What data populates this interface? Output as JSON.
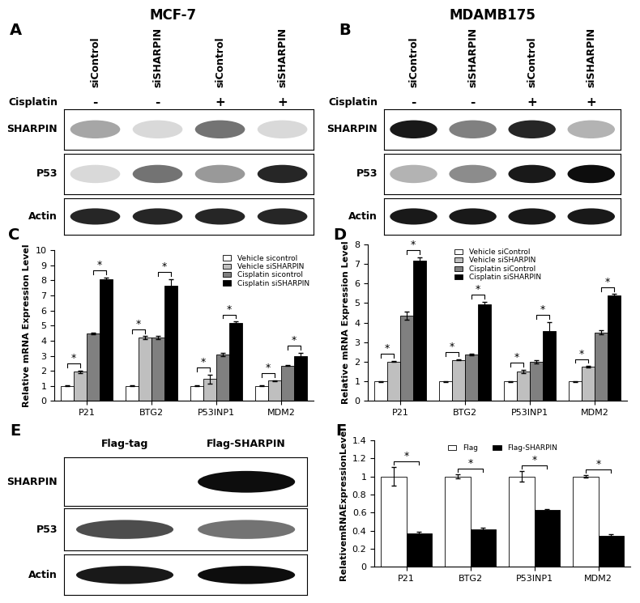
{
  "column_titles": [
    "MCF-7",
    "MDAMB175"
  ],
  "blots": [
    {
      "panel": "A",
      "lanes": [
        "siControl",
        "siSHARPIN",
        "siControl",
        "siSHARPIN"
      ],
      "treatment": {
        "name": "Cisplatin",
        "marks": [
          "-",
          "-",
          "+",
          "+"
        ]
      },
      "rows": [
        {
          "name": "SHARPIN",
          "band_intensity": [
            0.35,
            0.15,
            0.55,
            0.15
          ]
        },
        {
          "name": "P53",
          "band_intensity": [
            0.15,
            0.55,
            0.4,
            0.85
          ]
        },
        {
          "name": "Actin",
          "band_intensity": [
            0.85,
            0.85,
            0.85,
            0.85
          ]
        }
      ]
    },
    {
      "panel": "B",
      "lanes": [
        "siControl",
        "siSHARPIN",
        "siControl",
        "siSHARPIN"
      ],
      "treatment": {
        "name": "Cisplatin",
        "marks": [
          "-",
          "-",
          "+",
          "+"
        ]
      },
      "rows": [
        {
          "name": "SHARPIN",
          "band_intensity": [
            0.9,
            0.5,
            0.85,
            0.3
          ]
        },
        {
          "name": "P53",
          "band_intensity": [
            0.3,
            0.45,
            0.9,
            0.95
          ]
        },
        {
          "name": "Actin",
          "band_intensity": [
            0.9,
            0.9,
            0.9,
            0.9
          ]
        }
      ]
    },
    {
      "panel": "E",
      "lanes": [
        "Flag-tag",
        "Flag-SHARPIN"
      ],
      "rows": [
        {
          "name": "SHARPIN",
          "band_intensity": [
            0.0,
            0.95
          ]
        },
        {
          "name": "P53",
          "band_intensity": [
            0.7,
            0.55
          ]
        },
        {
          "name": "Actin",
          "band_intensity": [
            0.9,
            0.95
          ]
        }
      ]
    }
  ],
  "chart_data": [
    {
      "panel": "C",
      "type": "bar",
      "y_label": "Relative mRNA Expression Level",
      "categories": [
        "P21",
        "BTG2",
        "P53INP1",
        "MDM2"
      ],
      "series": [
        {
          "name": "Vehicle sicontrol",
          "color": "#ffffff",
          "values": [
            1,
            1,
            1,
            1
          ],
          "error": [
            0.02,
            0.02,
            0.02,
            0.02
          ]
        },
        {
          "name": "Vehicle siSHARPIN",
          "color": "#bfbfbf",
          "values": [
            1.95,
            4.2,
            1.45,
            1.35
          ],
          "error": [
            0.08,
            0.1,
            0.3,
            0.03
          ]
        },
        {
          "name": "Cisplatin sicontrol",
          "color": "#808080",
          "values": [
            4.5,
            4.2,
            3.1,
            2.35
          ],
          "error": [
            0.05,
            0.12,
            0.1,
            0.03
          ]
        },
        {
          "name": "Cisplatin siSHARPIN",
          "color": "#000000",
          "values": [
            8.1,
            7.65,
            5.2,
            3.0
          ],
          "error": [
            0.1,
            0.45,
            0.08,
            0.2
          ]
        }
      ],
      "ylim": [
        0,
        10
      ],
      "yticks": [
        0,
        1,
        2,
        3,
        4,
        5,
        6,
        7,
        8,
        9,
        10
      ],
      "legend": "upper right",
      "annotations": [
        {
          "category": "P21",
          "between": [
            "Vehicle sicontrol",
            "Vehicle siSHARPIN"
          ],
          "text": "*"
        },
        {
          "category": "P21",
          "between": [
            "Cisplatin sicontrol",
            "Cisplatin siSHARPIN"
          ],
          "text": "*"
        },
        {
          "category": "BTG2",
          "between": [
            "Vehicle sicontrol",
            "Vehicle siSHARPIN"
          ],
          "text": "*"
        },
        {
          "category": "BTG2",
          "between": [
            "Cisplatin sicontrol",
            "Cisplatin siSHARPIN"
          ],
          "text": "*"
        },
        {
          "category": "P53INP1",
          "between": [
            "Vehicle sicontrol",
            "Vehicle siSHARPIN"
          ],
          "text": "*"
        },
        {
          "category": "P53INP1",
          "between": [
            "Cisplatin sicontrol",
            "Cisplatin siSHARPIN"
          ],
          "text": "*"
        },
        {
          "category": "MDM2",
          "between": [
            "Vehicle sicontrol",
            "Vehicle siSHARPIN"
          ],
          "text": "*"
        },
        {
          "category": "MDM2",
          "between": [
            "Cisplatin sicontrol",
            "Cisplatin siSHARPIN"
          ],
          "text": "*"
        }
      ]
    },
    {
      "panel": "D",
      "type": "bar",
      "y_label": "Relative mRNA Expression Level",
      "categories": [
        "P21",
        "BTG2",
        "P53INP1",
        "MDM2"
      ],
      "series": [
        {
          "name": "Vehicle siControl",
          "color": "#ffffff",
          "values": [
            1,
            1,
            1,
            1
          ],
          "error": [
            0.02,
            0.02,
            0.02,
            0.02
          ]
        },
        {
          "name": "Vehicle siSHARPIN",
          "color": "#bfbfbf",
          "values": [
            2.02,
            2.1,
            1.52,
            1.75
          ],
          "error": [
            0.02,
            0.02,
            0.08,
            0.03
          ]
        },
        {
          "name": "Cisplatin siControl",
          "color": "#808080",
          "values": [
            4.35,
            2.38,
            2.0,
            3.5
          ],
          "error": [
            0.2,
            0.03,
            0.08,
            0.1
          ]
        },
        {
          "name": "Cisplatin siSHARPIN",
          "color": "#000000",
          "values": [
            7.15,
            4.95,
            3.58,
            5.4
          ],
          "error": [
            0.18,
            0.12,
            0.45,
            0.05
          ]
        }
      ],
      "ylim": [
        0,
        8
      ],
      "yticks": [
        0,
        1,
        2,
        3,
        4,
        5,
        6,
        7,
        8
      ],
      "legend": "upper center",
      "annotations": [
        {
          "category": "P21",
          "between": [
            "Vehicle siControl",
            "Vehicle siSHARPIN"
          ],
          "text": "*"
        },
        {
          "category": "P21",
          "between": [
            "Cisplatin siControl",
            "Cisplatin siSHARPIN"
          ],
          "text": "*"
        },
        {
          "category": "BTG2",
          "between": [
            "Vehicle siControl",
            "Vehicle siSHARPIN"
          ],
          "text": "*"
        },
        {
          "category": "BTG2",
          "between": [
            "Cisplatin siControl",
            "Cisplatin siSHARPIN"
          ],
          "text": "*"
        },
        {
          "category": "P53INP1",
          "between": [
            "Vehicle siControl",
            "Vehicle siSHARPIN"
          ],
          "text": "*"
        },
        {
          "category": "P53INP1",
          "between": [
            "Cisplatin siControl",
            "Cisplatin siSHARPIN"
          ],
          "text": "*"
        },
        {
          "category": "MDM2",
          "between": [
            "Vehicle siControl",
            "Vehicle siSHARPIN"
          ],
          "text": "*"
        },
        {
          "category": "MDM2",
          "between": [
            "Cisplatin siControl",
            "Cisplatin siSHARPIN"
          ],
          "text": "*"
        }
      ]
    },
    {
      "panel": "F",
      "type": "bar",
      "y_label": "RelativemRNAExpressionLevel",
      "categories": [
        "P21",
        "BTG2",
        "P53INP1",
        "MDM2"
      ],
      "series": [
        {
          "name": "Flag",
          "color": "#ffffff",
          "values": [
            1,
            1,
            1,
            1
          ],
          "error": [
            0.1,
            0.02,
            0.06,
            0.01
          ]
        },
        {
          "name": "Flag-SHARPIN",
          "color": "#000000",
          "values": [
            0.37,
            0.41,
            0.625,
            0.345
          ],
          "error": [
            0.02,
            0.02,
            0.01,
            0.02
          ]
        }
      ],
      "ylim": [
        0,
        1.4
      ],
      "yticks": [
        0,
        0.2,
        0.4,
        0.6,
        0.8,
        1,
        1.2,
        1.4
      ],
      "legend": "upper center",
      "annotations": [
        {
          "category": "P21",
          "between": [
            "Flag",
            "Flag-SHARPIN"
          ],
          "text": "*"
        },
        {
          "category": "BTG2",
          "between": [
            "Flag",
            "Flag-SHARPIN"
          ],
          "text": "*"
        },
        {
          "category": "P53INP1",
          "between": [
            "Flag",
            "Flag-SHARPIN"
          ],
          "text": "*"
        },
        {
          "category": "MDM2",
          "between": [
            "Flag",
            "Flag-SHARPIN"
          ],
          "text": "*"
        }
      ]
    }
  ]
}
